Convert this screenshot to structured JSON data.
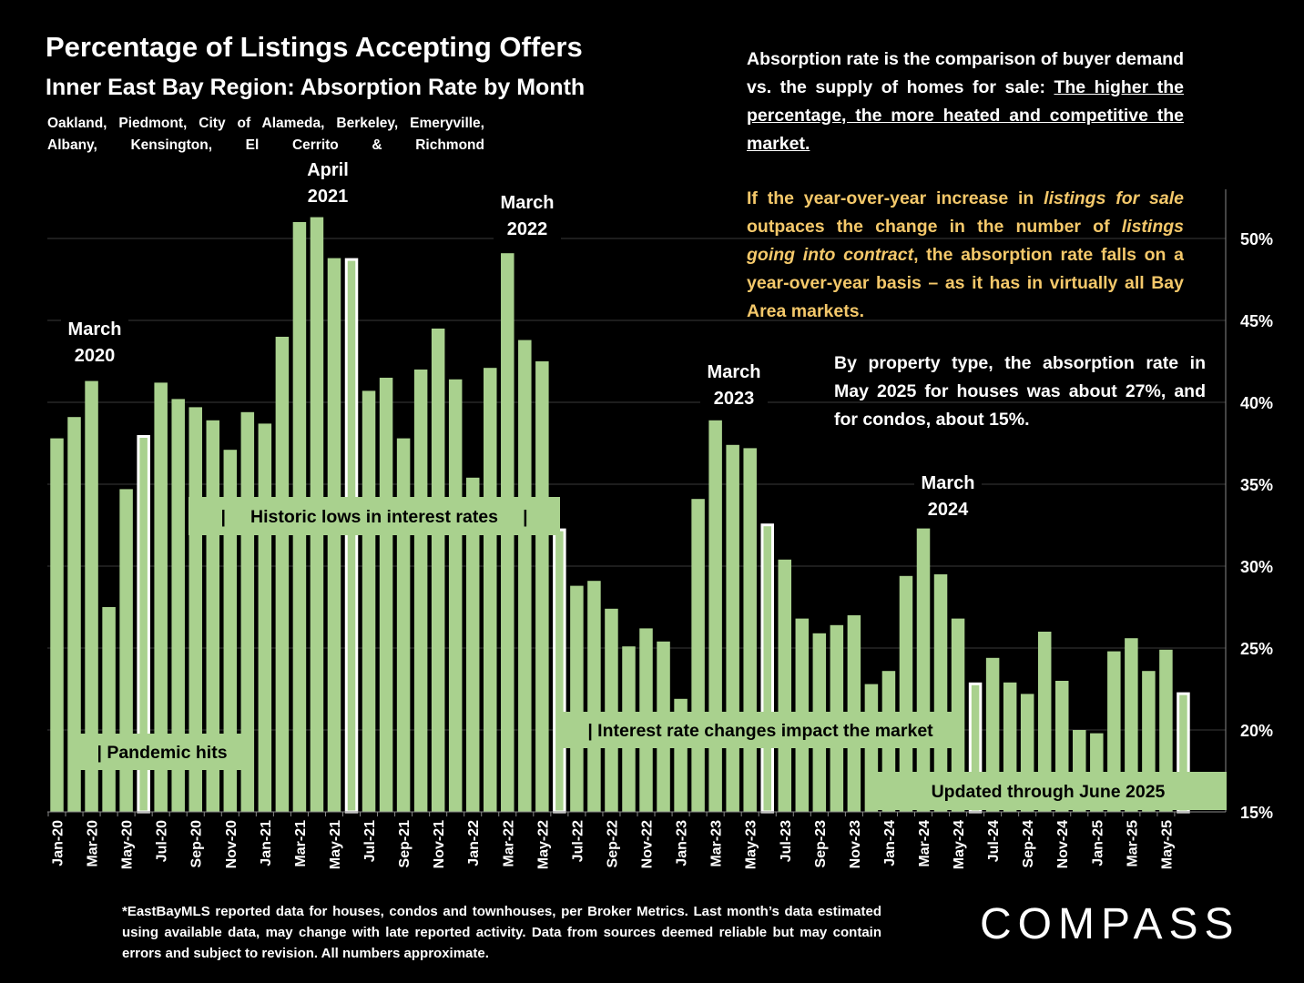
{
  "header": {
    "title": "Percentage of Listings Accepting Offers",
    "subtitle": "Inner East Bay Region:  Absorption Rate by Month",
    "cities": "Oakland, Piedmont, City of Alameda, Berkeley, Emeryville, Albany, Kensington, El Cerrito & Richmond"
  },
  "notes": {
    "p1_text": "Absorption rate is the comparison of buyer demand vs. the supply of homes for sale: ",
    "p1_underlined": "The higher the percentage, the more heated and competitive the market.",
    "p2_a": "If the year-over-year increase in ",
    "p2_b": "listings for sale",
    "p2_c": " outpaces the change in the number of ",
    "p2_d": "listings going into contract",
    "p2_e": ", the absorption rate falls on a year-over-year basis – as it has in virtually all Bay Area markets.",
    "p3": "By property type, the absorption rate in May 2025 for houses was about 27%, and for condos, about 15%."
  },
  "footnote": "*EastBayMLS reported data for houses, condos and townhouses, per Broker Metrics. Last month’s data estimated using available data, may change with late reported activity. Data from sources deemed reliable but may contain errors and subject to revision. All numbers approximate.",
  "logo": "COMPASS",
  "colors": {
    "bar": "#a9d18e",
    "highlight_bar": "#ffffff",
    "background": "#000000",
    "note_orange": "#f4c86a"
  },
  "chart_data": {
    "type": "bar",
    "ylim": [
      15,
      53
    ],
    "y_ticks": [
      "15%",
      "20%",
      "25%",
      "30%",
      "35%",
      "40%",
      "45%",
      "50%"
    ],
    "x_tick_labels": [
      "Jan-20",
      "Mar-20",
      "May-20",
      "Jul-20",
      "Sep-20",
      "Nov-20",
      "Jan-21",
      "Mar-21",
      "May-21",
      "Jul-21",
      "Sep-21",
      "Nov-21",
      "Jan-22",
      "Mar-22",
      "May-22",
      "Jul-22",
      "Sep-22",
      "Nov-22",
      "Jan-23",
      "Mar-23",
      "May-23",
      "Jul-23",
      "Sep-23",
      "Nov-23",
      "Jan-24",
      "Mar-24",
      "May-24",
      "Jul-24",
      "Sep-24",
      "Nov-24",
      "Jan-25",
      "Mar-25",
      "May-25"
    ],
    "values": [
      37.8,
      39.1,
      41.3,
      27.5,
      34.7,
      38.0,
      41.2,
      40.2,
      39.7,
      38.9,
      37.1,
      39.4,
      38.7,
      44.0,
      51.0,
      51.3,
      48.8,
      48.8,
      40.7,
      41.5,
      37.8,
      42.0,
      44.5,
      41.4,
      35.4,
      42.1,
      49.1,
      43.8,
      42.5,
      32.3,
      28.8,
      29.1,
      27.4,
      25.1,
      26.2,
      25.4,
      21.9,
      34.1,
      38.9,
      37.4,
      37.2,
      32.6,
      30.4,
      26.8,
      25.9,
      26.4,
      27.0,
      22.8,
      23.6,
      29.4,
      32.3,
      29.5,
      26.8,
      22.9,
      24.4,
      22.9,
      22.2,
      26.0,
      23.0,
      20.0,
      19.8,
      24.8,
      25.6,
      23.6,
      24.9,
      22.3
    ],
    "highlight_indices": [
      5,
      17,
      29,
      41,
      53,
      65
    ],
    "annotations": [
      {
        "lines": [
          "March",
          "2020"
        ],
        "month_index": 2
      },
      {
        "lines": [
          "April",
          "2021"
        ],
        "month_index": 15
      },
      {
        "lines": [
          "March",
          "2022"
        ],
        "month_index": 26
      },
      {
        "lines": [
          "March",
          "2023"
        ],
        "month_index": 38
      },
      {
        "lines": [
          "March",
          "2024"
        ],
        "month_index": 50
      }
    ],
    "labels": {
      "pandemic": "| Pandemic hits",
      "historic_lows": "|     Historic lows in interest rates     |",
      "rate_changes": "| Interest rate changes impact the market",
      "updated": "Updated through June 2025"
    }
  }
}
